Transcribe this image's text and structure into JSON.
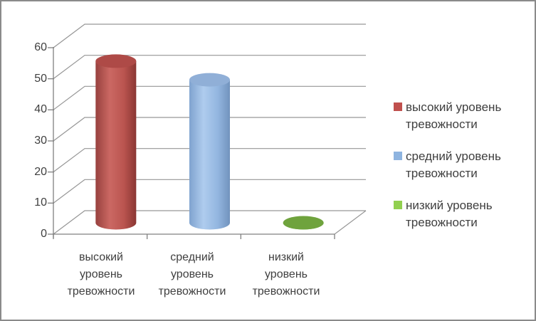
{
  "chart_data": {
    "type": "bar",
    "subtype": "3d-cylinder",
    "title": "",
    "xlabel": "",
    "ylabel": "",
    "categories": [
      "высокий уровень тревожности",
      "средний уровень тревожности",
      "низкий уровень тревожности"
    ],
    "values": [
      52,
      46,
      0
    ],
    "series_colors": [
      "#C0504D",
      "#8EB4E0",
      "#92D050"
    ],
    "yticks": [
      0,
      10,
      20,
      30,
      40,
      50,
      60
    ],
    "ylim": [
      0,
      60
    ],
    "grid": true,
    "legend_position": "right"
  },
  "y_axis": {
    "tick_labels": [
      "0",
      "10",
      "20",
      "30",
      "40",
      "50",
      "60"
    ]
  },
  "categories": [
    {
      "lines": [
        "высокий",
        "уровень",
        "тревожности"
      ]
    },
    {
      "lines": [
        "средний",
        "уровень",
        "тревожности"
      ]
    },
    {
      "lines": [
        "низкий",
        "уровень",
        "тревожности"
      ]
    }
  ],
  "legend": {
    "items": [
      {
        "line1": "высокий уровень",
        "line2": "тревожности"
      },
      {
        "line1": "средний уровень",
        "line2": "тревожности"
      },
      {
        "line1": "низкий уровень",
        "line2": "тревожности"
      }
    ]
  },
  "colors": {
    "frame_border": "#8A8A8A",
    "gridline": "#969696",
    "axis": "#808080",
    "text": "#3F3F3F"
  }
}
